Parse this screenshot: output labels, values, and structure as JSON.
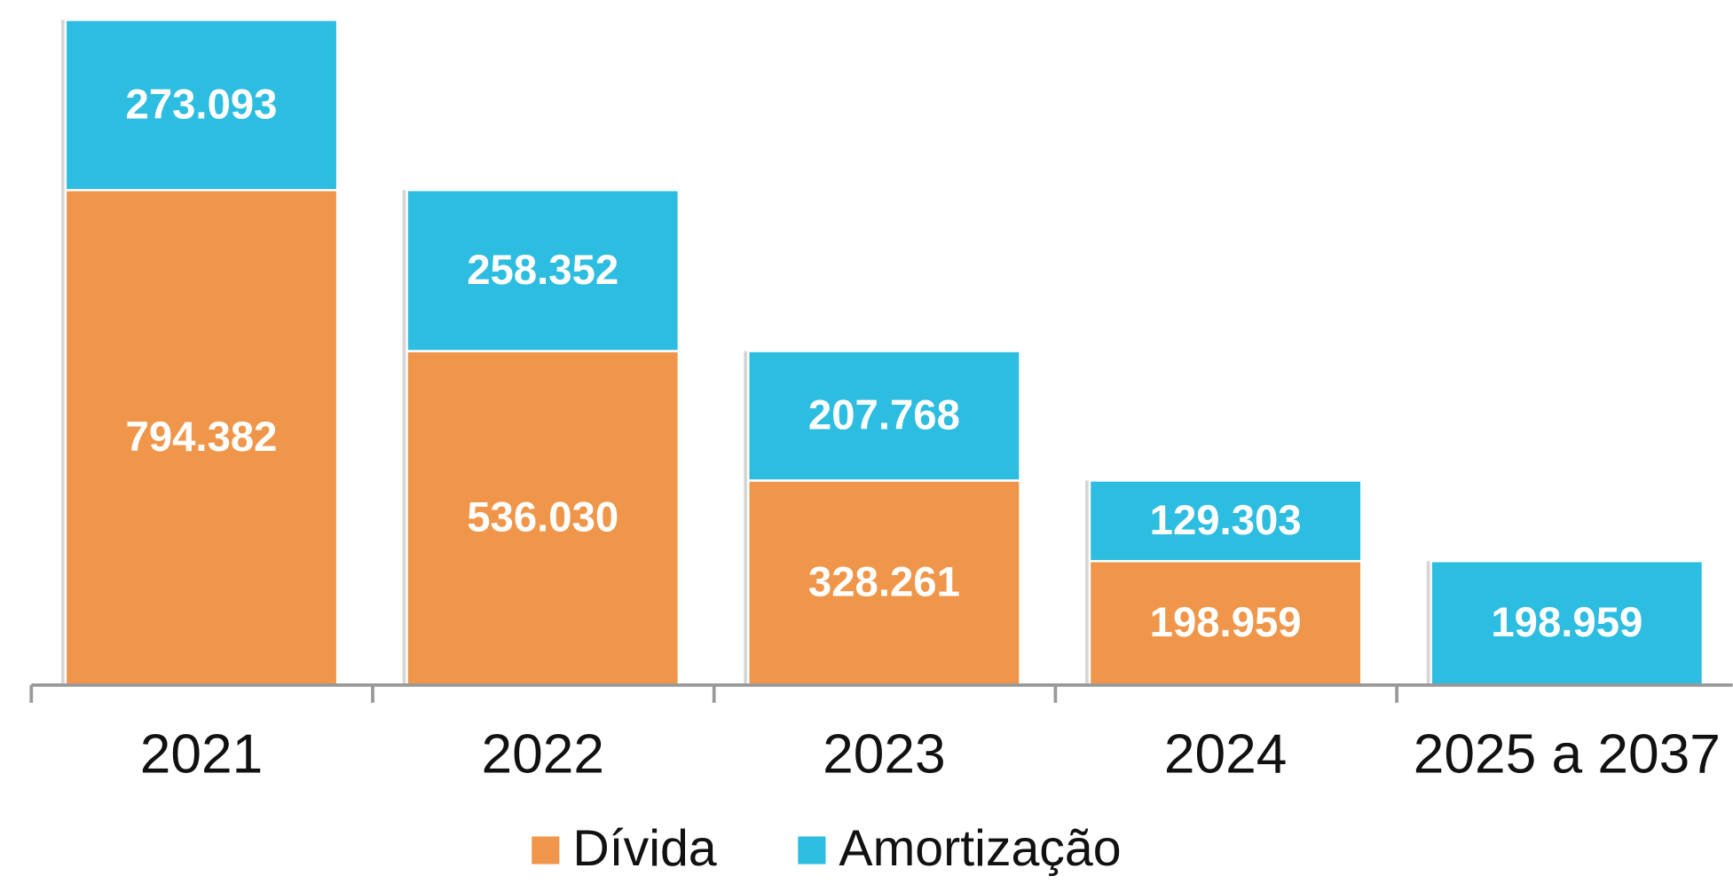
{
  "chart_data": {
    "type": "stacked_bar",
    "categories": [
      "2021",
      "2022",
      "2023",
      "2024",
      "2025 a 2037"
    ],
    "series": [
      {
        "name": "Dívida",
        "color": "#f0964a",
        "values": [
          794382,
          536030,
          328261,
          198959,
          null
        ],
        "value_labels": [
          "794.382",
          "536.030",
          "328.261",
          "198.959",
          null
        ]
      },
      {
        "name": "Amortização",
        "color": "#2dbde0",
        "values": [
          273093,
          258352,
          207768,
          129303,
          198959
        ],
        "value_labels": [
          "273.093",
          "258.352",
          "207.768",
          "129.303",
          "198.959"
        ]
      }
    ],
    "legend": "bottom"
  }
}
